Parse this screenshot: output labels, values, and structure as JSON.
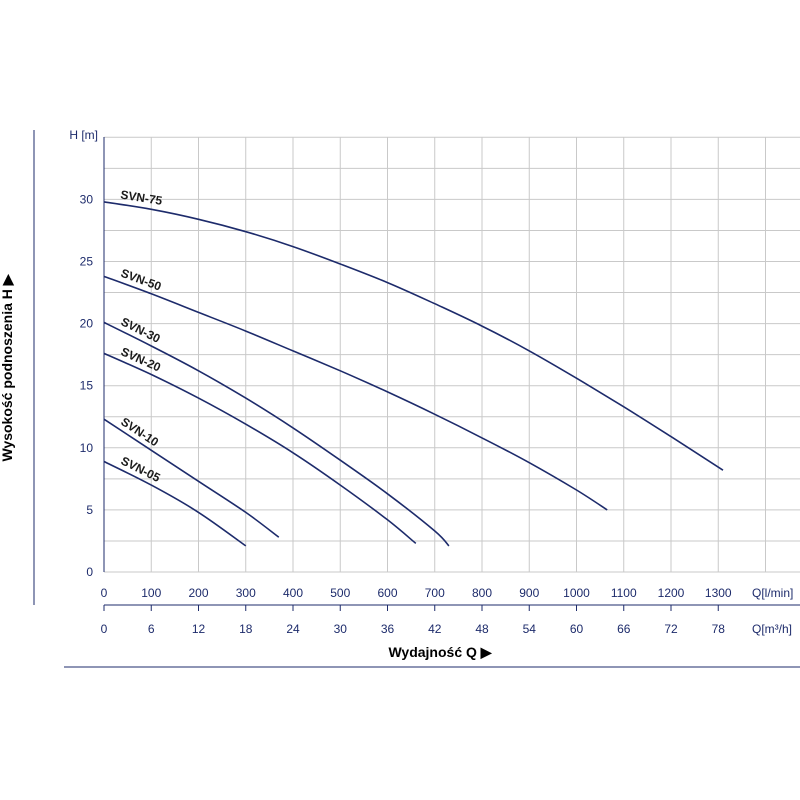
{
  "chart_data": {
    "type": "line",
    "y_unit_label": "H [m]",
    "x_unit_label": "Q[l/min]",
    "x2_unit_label": "Q[m³/h]",
    "ylabel": "Wysokość podnoszenia H ▶",
    "xlabel": "Wydajność Q ▶",
    "xlim": [
      0,
      1400
    ],
    "ylim": [
      0,
      35
    ],
    "x_ticks": [
      0,
      100,
      200,
      300,
      400,
      500,
      600,
      700,
      800,
      900,
      1000,
      1100,
      1200,
      1300
    ],
    "x2_ticks": [
      "0",
      "6",
      "12",
      "18",
      "24",
      "30",
      "36",
      "42",
      "48",
      "54",
      "60",
      "66",
      "72",
      "78"
    ],
    "y_ticks": [
      0,
      5,
      10,
      15,
      20,
      25,
      30
    ],
    "grid": true,
    "line_color": "#1d2b6b",
    "series": [
      {
        "name": "SVN-75",
        "x": [
          0,
          100,
          200,
          300,
          400,
          500,
          600,
          700,
          800,
          900,
          1000,
          1100,
          1200,
          1310
        ],
        "y": [
          29.8,
          29.2,
          28.4,
          27.4,
          26.2,
          24.8,
          23.3,
          21.6,
          19.8,
          17.8,
          15.6,
          13.3,
          10.9,
          8.2
        ]
      },
      {
        "name": "SVN-50",
        "x": [
          0,
          100,
          200,
          300,
          400,
          500,
          600,
          700,
          800,
          900,
          1000,
          1065
        ],
        "y": [
          23.8,
          22.4,
          20.9,
          19.4,
          17.8,
          16.2,
          14.5,
          12.7,
          10.8,
          8.8,
          6.6,
          5.0
        ]
      },
      {
        "name": "SVN-30",
        "x": [
          0,
          100,
          200,
          300,
          400,
          500,
          600,
          700,
          730
        ],
        "y": [
          20.1,
          18.2,
          16.2,
          14.0,
          11.6,
          9.0,
          6.3,
          3.3,
          2.1
        ]
      },
      {
        "name": "SVN-20",
        "x": [
          0,
          100,
          200,
          300,
          400,
          500,
          600,
          660
        ],
        "y": [
          17.6,
          15.9,
          14.0,
          11.9,
          9.6,
          7.0,
          4.2,
          2.3
        ]
      },
      {
        "name": "SVN-10",
        "x": [
          0,
          100,
          200,
          300,
          370
        ],
        "y": [
          12.3,
          9.8,
          7.3,
          4.8,
          2.8
        ]
      },
      {
        "name": "SVN-05",
        "x": [
          0,
          100,
          200,
          300
        ],
        "y": [
          8.9,
          7.0,
          4.8,
          2.1
        ]
      }
    ]
  }
}
